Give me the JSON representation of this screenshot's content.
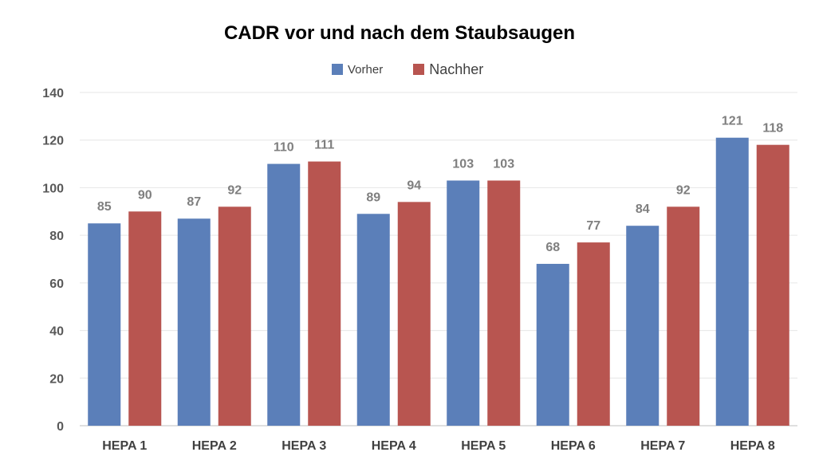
{
  "chart_data": {
    "type": "bar",
    "title": "CADR vor und nach dem Staubsaugen",
    "xlabel": "",
    "ylabel": "",
    "categories": [
      "HEPA 1",
      "HEPA 2",
      "HEPA 3",
      "HEPA 4",
      "HEPA 5",
      "HEPA 6",
      "HEPA 7",
      "HEPA 8"
    ],
    "series": [
      {
        "name": "Vorher",
        "color": "#5b7fb9",
        "values": [
          85,
          87,
          110,
          89,
          103,
          68,
          84,
          121
        ]
      },
      {
        "name": "Nachher",
        "color": "#b85550",
        "values": [
          90,
          92,
          111,
          94,
          103,
          77,
          92,
          118
        ]
      }
    ],
    "ylim": [
      0,
      140
    ],
    "yticks": [
      0,
      20,
      40,
      60,
      80,
      100,
      120,
      140
    ],
    "grid": true,
    "legend_position": "top"
  }
}
